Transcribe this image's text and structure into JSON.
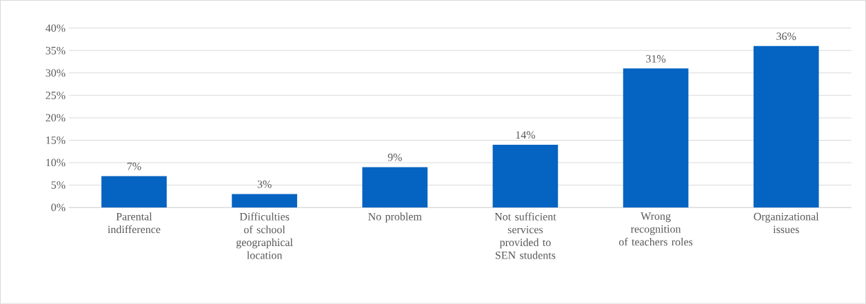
{
  "chart_data": {
    "type": "bar",
    "categories": [
      "Parental indifference",
      "Difficulties of school geographical location",
      "No problem",
      "Not sufficient services provided to SEN students",
      "Wrong recognition of teachers roles",
      "Organizational issues"
    ],
    "values": [
      7,
      3,
      9,
      14,
      31,
      36
    ],
    "value_labels": [
      "7%",
      "3%",
      "9%",
      "14%",
      "31%",
      "36%"
    ],
    "color": "#0563c1",
    "ylim": [
      0,
      40
    ],
    "yticks": [
      {
        "value": 0,
        "label": "0%"
      },
      {
        "value": 5,
        "label": "5%"
      },
      {
        "value": 10,
        "label": "10%"
      },
      {
        "value": 15,
        "label": "15%"
      },
      {
        "value": 20,
        "label": "20%"
      },
      {
        "value": 25,
        "label": "25%"
      },
      {
        "value": 30,
        "label": "30%"
      },
      {
        "value": 35,
        "label": "35%"
      },
      {
        "value": 40,
        "label": "40%"
      }
    ],
    "grid": "y"
  }
}
